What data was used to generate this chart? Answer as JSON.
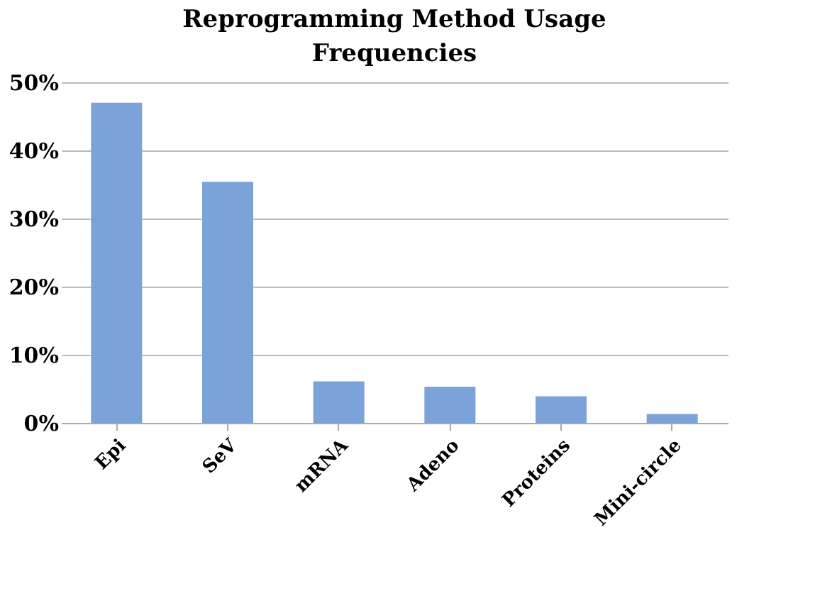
{
  "chart_data": {
    "type": "bar",
    "title": "Reprogramming Method Usage Frequencies",
    "categories": [
      "Epi",
      "SeV",
      "mRNA",
      "Adeno",
      "Proteins",
      "Mini-circle"
    ],
    "values": [
      47.0,
      35.4,
      6.1,
      5.3,
      3.9,
      1.3
    ],
    "color": "#7ba3d9",
    "ylim": [
      0,
      50
    ],
    "yticks": [
      {
        "value": 0,
        "label": "0%"
      },
      {
        "value": 10,
        "label": "10%"
      },
      {
        "value": 20,
        "label": "20%"
      },
      {
        "value": 30,
        "label": "30%"
      },
      {
        "value": 40,
        "label": "40%"
      },
      {
        "value": 50,
        "label": "50%"
      }
    ],
    "grid": "y"
  }
}
